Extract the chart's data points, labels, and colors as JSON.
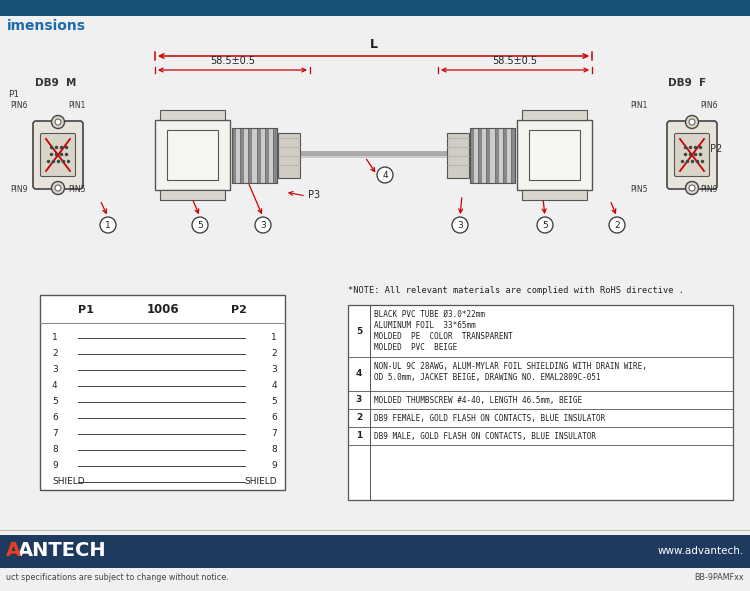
{
  "bg_color": "#f2f2f2",
  "white_area_color": "#ffffff",
  "header_blue": "#1a5276",
  "title_text": "imensions",
  "title_color": "#1a6aad",
  "footer_bar_color": "#1e3a5f",
  "footer_text_left": "uct specifications are subject to change without notice.",
  "footer_text_right": "BB-9PAMFxx",
  "footer_url": "www.advantech.",
  "dim_label_L": "L",
  "dim_label_58_left": "58.5±0.5",
  "dim_label_58_right": "58.5±0.5",
  "db9m_label": "DB9  M",
  "db9f_label": "DB9  F",
  "p1_label": "P1",
  "p2_label": "P2",
  "part_number": "1006",
  "pin_rows": [
    "1",
    "2",
    "3",
    "4",
    "5",
    "6",
    "7",
    "8",
    "9",
    "SHIELD"
  ],
  "note_text": "*NOTE: All relevant materials are complied with RoHS directive .",
  "bom_items": [
    {
      "num": "5",
      "desc": [
        "BLACK PVC TUBE Ø3.0*22mm",
        "ALUMINUM FOIL  33*65mm",
        "MOLDED  PE  COLOR  TRANSPARENT",
        "MOLDED  PVC  BEIGE"
      ]
    },
    {
      "num": "4",
      "desc": [
        "NON-UL 9C 28AWG, ALUM-MYLAR FOIL SHIELDING WITH DRAIN WIRE,",
        "OD 5.0mm, JACKET BEIGE, DRAWING NO. EMAL2809C-051"
      ]
    },
    {
      "num": "3",
      "desc": [
        "MOLDED THUMBSCREW #4-40, LENGTH 46.5mm, BEIGE"
      ]
    },
    {
      "num": "2",
      "desc": [
        "DB9 FEMALE, GOLD FLASH ON CONTACTS, BLUE INSULATOR"
      ]
    },
    {
      "num": "1",
      "desc": [
        "DB9 MALE, GOLD FLASH ON CONTACTS, BLUE INSULATOR"
      ]
    }
  ],
  "red_color": "#cc0000",
  "line_color": "#333333",
  "conn_fill": "#e8e4dc",
  "conn_edge": "#555555",
  "ribbed_fill": "#b0b0b0",
  "ribbed_edge": "#666666",
  "shell_fill": "#f5f3ee",
  "db9_face_fill": "#e8e4dc",
  "db9_insert_fill": "#ddd8cc"
}
